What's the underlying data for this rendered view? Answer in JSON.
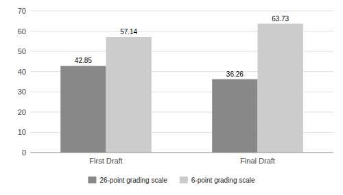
{
  "chart_data": {
    "type": "bar",
    "categories": [
      "First Draft",
      "Final Draft"
    ],
    "series": [
      {
        "name": "26-point grading scale",
        "color": "#888888",
        "values": [
          42.85,
          36.26
        ]
      },
      {
        "name": "6-point grading scale",
        "color": "#cccccc",
        "values": [
          57.14,
          63.73
        ]
      }
    ],
    "ylim": [
      0,
      70
    ],
    "yticks": [
      0,
      10,
      20,
      30,
      40,
      50,
      60,
      70
    ],
    "grid": true,
    "legend": "bottom",
    "data_labels": true
  }
}
